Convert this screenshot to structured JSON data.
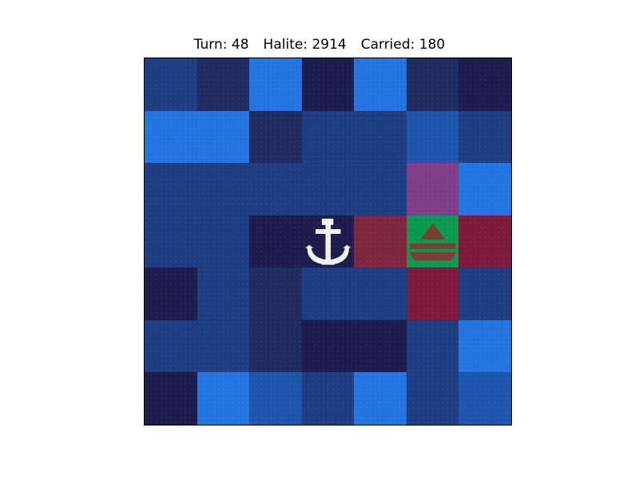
{
  "hud": {
    "turn_label": "Turn: 48",
    "halite_label": "Halite: 2914",
    "carried_label": "Carried: 180"
  },
  "board": {
    "size": 7,
    "colors": {
      "deep": "#1e1c4c",
      "dark": "#1f2c62",
      "mid": "#1e3e84",
      "bright": "#2475e2",
      "medium_bright": "#1e56ad",
      "magenta": "#813f8b",
      "crimson": "#7e1b3c",
      "rust": "#7f273d",
      "green": "#0c9a52",
      "shipyard_white": "#f0f0f0",
      "ship_brown": "#7b4033"
    },
    "rows": [
      [
        "mid",
        "dark",
        "bright",
        "deep",
        "bright",
        "dark",
        "deep"
      ],
      [
        "bright",
        "bright",
        "dark",
        "mid",
        "mid",
        "medium_bright",
        "mid"
      ],
      [
        "mid",
        "mid",
        "mid",
        "mid",
        "mid",
        "magenta",
        "bright"
      ],
      [
        "mid",
        "mid",
        "deep",
        "deep",
        "rust",
        "green",
        "crimson"
      ],
      [
        "deep",
        "mid",
        "dark",
        "mid",
        "mid",
        "crimson",
        "mid"
      ],
      [
        "mid",
        "mid",
        "dark",
        "deep",
        "deep",
        "mid",
        "bright"
      ],
      [
        "deep",
        "bright",
        "medium_bright",
        "mid",
        "bright",
        "mid",
        "medium_bright"
      ]
    ],
    "shipyard": {
      "row": 3,
      "col": 3,
      "icon": "anchor-icon"
    },
    "ship": {
      "row": 3,
      "col": 5,
      "icon": "ship-icon"
    }
  }
}
